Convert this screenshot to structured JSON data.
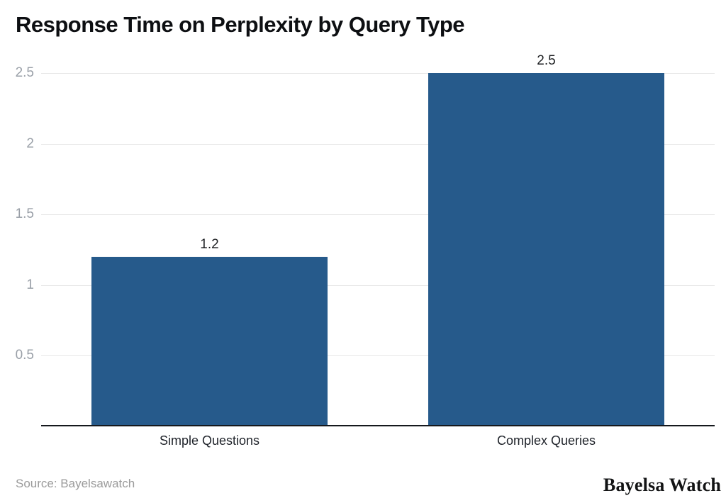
{
  "title": "Response Time on Perplexity by Query Type",
  "footer": {
    "source": "Source: Bayelsawatch",
    "brand": "Bayelsa Watch"
  },
  "colors": {
    "bar": "#265a8b",
    "grid": "#e8e8e8",
    "axis": "#15181d",
    "tick_label": "#9aa0a8",
    "value_label": "#1c1e21",
    "category_label": "#20242b",
    "source_text": "#9b9b9b"
  },
  "chart_data": {
    "type": "bar",
    "title": "Response Time on Perplexity by Query Type",
    "categories": [
      "Simple Questions",
      "Complex Queries"
    ],
    "values": [
      1.2,
      2.5
    ],
    "value_labels": [
      "1.2",
      "2.5"
    ],
    "xlabel": "",
    "ylabel": "",
    "ylim": [
      0,
      2.5
    ],
    "yticks": [
      0.5,
      1,
      1.5,
      2,
      2.5
    ],
    "ytick_labels": [
      "0.5",
      "1",
      "1.5",
      "2",
      "2.5"
    ],
    "grid": true,
    "legend_position": "none"
  }
}
